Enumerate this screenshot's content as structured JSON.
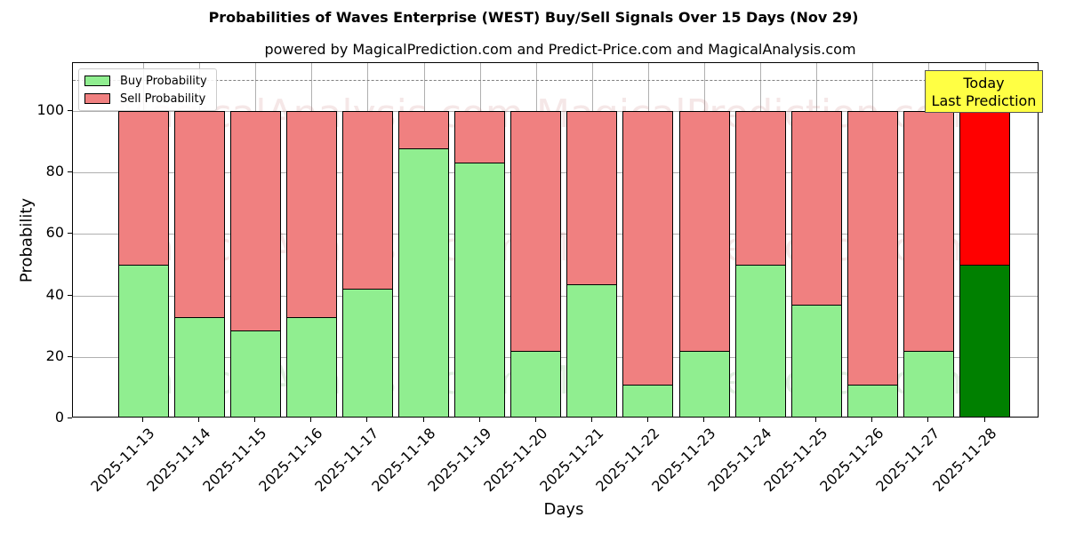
{
  "title": "Probabilities of Waves Enterprise (WEST) Buy/Sell Signals Over 15 Days (Nov 29)",
  "subtitle": "powered by MagicalPrediction.com and Predict-Price.com and MagicalAnalysis.com",
  "legend": {
    "buy": "Buy Probability",
    "sell": "Sell Probability"
  },
  "annotation": {
    "line1": "Today",
    "line2": "Last Prediction"
  },
  "watermarks": [
    "MagicalAnalysis.com",
    "MagicalPrediction.com"
  ],
  "colors": {
    "buy": "#90ee90",
    "sell": "#f08080",
    "today_buy": "#008000",
    "today_sell": "#ff0000",
    "annotation_bg": "#ffff44"
  },
  "chart_data": {
    "type": "bar",
    "stacked": true,
    "title": "Probabilities of Waves Enterprise (WEST) Buy/Sell Signals Over 15 Days (Nov 29)",
    "subtitle": "powered by MagicalPrediction.com and Predict-Price.com and MagicalAnalysis.com",
    "xlabel": "Days",
    "ylabel": "Probability",
    "ylim": [
      0,
      115
    ],
    "yticks": [
      0,
      20,
      40,
      60,
      80,
      100
    ],
    "grid": true,
    "legend_position": "upper left",
    "reference_line": {
      "y": 110,
      "style": "dashed"
    },
    "categories": [
      "2025-11-13",
      "2025-11-14",
      "2025-11-15",
      "2025-11-16",
      "2025-11-17",
      "2025-11-18",
      "2025-11-19",
      "2025-11-20",
      "2025-11-21",
      "2025-11-22",
      "2025-11-23",
      "2025-11-24",
      "2025-11-25",
      "2025-11-26",
      "2025-11-27",
      "2025-11-28"
    ],
    "series": [
      {
        "name": "Buy Probability",
        "values": [
          50,
          33,
          28.6,
          33,
          42.2,
          88,
          83.3,
          22,
          43.7,
          10.9,
          22,
          50,
          36.9,
          11.1,
          22,
          50
        ]
      },
      {
        "name": "Sell Probability",
        "values": [
          50,
          67,
          71.4,
          67,
          57.8,
          12,
          16.7,
          78,
          56.3,
          89.1,
          78,
          50,
          63.1,
          88.9,
          78,
          50
        ]
      }
    ],
    "annotations": [
      "Today\nLast Prediction"
    ]
  }
}
